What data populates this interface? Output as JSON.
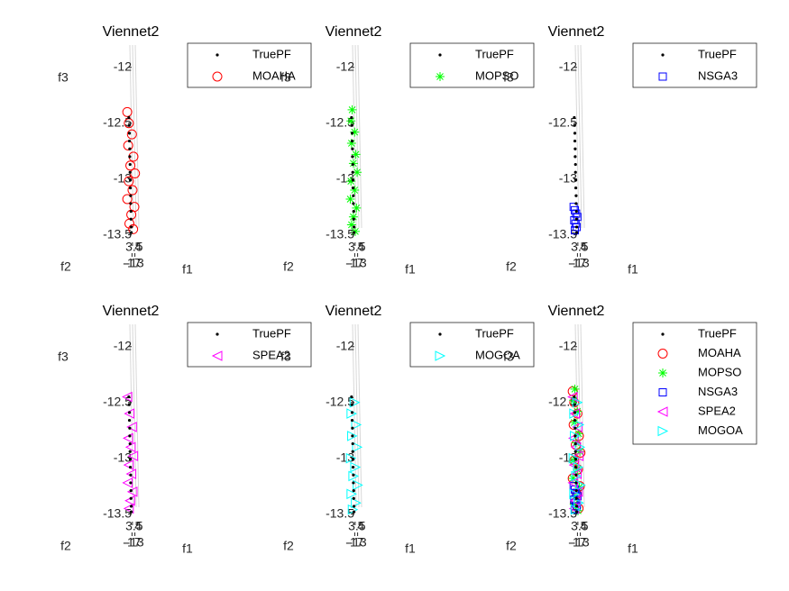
{
  "chart_data": [
    {
      "type": "scatter3d",
      "title": "Viennet2",
      "xlabel": "f1",
      "ylabel": "f2",
      "zlabel": "f3",
      "xlim": [
        3.4,
        4.1
      ],
      "xticks": [
        3.5,
        4
      ],
      "ylim": [
        -17.5,
        -12.5
      ],
      "yticks": [
        -17,
        -13
      ],
      "zlim": [
        -13.6,
        -11.8
      ],
      "zticks": [
        -12,
        -12.5,
        -13,
        -13.5
      ],
      "legend": "northeastoutside",
      "series": [
        {
          "name": "TruePF",
          "color": "#000000",
          "marker": "point",
          "x": [
            3.6,
            3.61,
            3.62,
            3.62,
            3.63,
            3.63,
            3.64,
            3.64,
            3.65,
            3.65,
            3.66,
            3.66,
            3.67,
            3.67,
            3.68,
            3.68
          ],
          "values": [
            -12.45,
            -12.52,
            -12.59,
            -12.66,
            -12.73,
            -12.8,
            -12.87,
            -12.94,
            -13.01,
            -13.08,
            -13.15,
            -13.22,
            -13.29,
            -13.36,
            -13.43,
            -13.48
          ]
        },
        {
          "name": "MOAHA",
          "color": "#ff0000",
          "marker": "circle",
          "x": [
            3.55,
            3.6,
            3.7,
            3.58,
            3.75,
            3.65,
            3.8,
            3.6,
            3.72,
            3.55,
            3.78,
            3.68,
            3.62,
            3.74
          ],
          "values": [
            -12.4,
            -12.5,
            -12.6,
            -12.7,
            -12.8,
            -12.88,
            -12.95,
            -13.02,
            -13.1,
            -13.18,
            -13.25,
            -13.32,
            -13.4,
            -13.45
          ]
        }
      ]
    },
    {
      "type": "scatter3d",
      "title": "Viennet2",
      "xlabel": "f1",
      "ylabel": "f2",
      "zlabel": "f3",
      "xlim": [
        3.4,
        4.1
      ],
      "xticks": [
        3.5,
        4
      ],
      "ylim": [
        -17.5,
        -12.5
      ],
      "yticks": [
        -17,
        -13
      ],
      "zlim": [
        -13.6,
        -11.8
      ],
      "zticks": [
        -12,
        -12.5,
        -13,
        -13.5
      ],
      "legend": "northeastoutside",
      "series": [
        {
          "name": "TruePF",
          "color": "#000000",
          "marker": "point",
          "x": [
            3.6,
            3.61,
            3.62,
            3.62,
            3.63,
            3.63,
            3.64,
            3.64,
            3.65,
            3.65,
            3.66,
            3.66,
            3.67,
            3.67,
            3.68,
            3.68
          ],
          "values": [
            -12.45,
            -12.52,
            -12.59,
            -12.66,
            -12.73,
            -12.8,
            -12.87,
            -12.94,
            -13.01,
            -13.08,
            -13.15,
            -13.22,
            -13.29,
            -13.36,
            -13.43,
            -13.48
          ]
        },
        {
          "name": "MOPSO",
          "color": "#00ff00",
          "marker": "asterisk",
          "x": [
            3.62,
            3.58,
            3.7,
            3.6,
            3.74,
            3.66,
            3.78,
            3.58,
            3.7,
            3.56,
            3.76,
            3.66,
            3.6,
            3.72
          ],
          "values": [
            -12.38,
            -12.48,
            -12.58,
            -12.68,
            -12.78,
            -12.86,
            -12.94,
            -13.02,
            -13.1,
            -13.18,
            -13.26,
            -13.34,
            -13.41,
            -13.47
          ]
        }
      ]
    },
    {
      "type": "scatter3d",
      "title": "Viennet2",
      "xlabel": "f1",
      "ylabel": "f2",
      "zlabel": "f3",
      "xlim": [
        3.4,
        4.1
      ],
      "xticks": [
        3.5,
        4
      ],
      "ylim": [
        -17.5,
        -12.5
      ],
      "yticks": [
        -17,
        -13
      ],
      "zlim": [
        -13.6,
        -11.8
      ],
      "zticks": [
        -12,
        -12.5,
        -13,
        -13.5
      ],
      "legend": "northeastoutside",
      "series": [
        {
          "name": "TruePF",
          "color": "#000000",
          "marker": "point",
          "x": [
            3.6,
            3.61,
            3.62,
            3.62,
            3.63,
            3.63,
            3.64,
            3.64,
            3.65,
            3.65,
            3.66,
            3.66,
            3.67,
            3.67,
            3.68,
            3.68
          ],
          "values": [
            -12.45,
            -12.52,
            -12.59,
            -12.66,
            -12.73,
            -12.8,
            -12.87,
            -12.94,
            -13.01,
            -13.08,
            -13.15,
            -13.22,
            -13.29,
            -13.36,
            -13.43,
            -13.48
          ]
        },
        {
          "name": "NSGA3",
          "color": "#0000ff",
          "marker": "square",
          "x": [
            3.58,
            3.62,
            3.66,
            3.7,
            3.6,
            3.64,
            3.68,
            3.62
          ],
          "values": [
            -13.25,
            -13.28,
            -13.31,
            -13.34,
            -13.37,
            -13.4,
            -13.43,
            -13.46
          ]
        }
      ]
    },
    {
      "type": "scatter3d",
      "title": "Viennet2",
      "xlabel": "f1",
      "ylabel": "f2",
      "zlabel": "f3",
      "xlim": [
        3.4,
        4.1
      ],
      "xticks": [
        3.5,
        4
      ],
      "ylim": [
        -17.5,
        -12.5
      ],
      "yticks": [
        -17,
        -13
      ],
      "zlim": [
        -13.6,
        -11.8
      ],
      "zticks": [
        -12,
        -12.5,
        -13,
        -13.5
      ],
      "legend": "northeastoutside",
      "series": [
        {
          "name": "TruePF",
          "color": "#000000",
          "marker": "point",
          "x": [
            3.6,
            3.61,
            3.62,
            3.62,
            3.63,
            3.63,
            3.64,
            3.64,
            3.65,
            3.65,
            3.66,
            3.66,
            3.67,
            3.67,
            3.68,
            3.68
          ],
          "values": [
            -12.45,
            -12.52,
            -12.59,
            -12.66,
            -12.73,
            -12.8,
            -12.87,
            -12.94,
            -13.01,
            -13.08,
            -13.15,
            -13.22,
            -13.29,
            -13.36,
            -13.43,
            -13.48
          ]
        },
        {
          "name": "SPEA2",
          "color": "#ff00ff",
          "marker": "triangle-left",
          "x": [
            3.55,
            3.62,
            3.7,
            3.58,
            3.66,
            3.74,
            3.6,
            3.68,
            3.56,
            3.72,
            3.64,
            3.6
          ],
          "values": [
            -12.45,
            -12.6,
            -12.72,
            -12.82,
            -12.9,
            -12.98,
            -13.06,
            -13.14,
            -13.22,
            -13.3,
            -13.38,
            -13.45
          ]
        }
      ]
    },
    {
      "type": "scatter3d",
      "title": "Viennet2",
      "xlabel": "f1",
      "ylabel": "f2",
      "zlabel": "f3",
      "xlim": [
        3.4,
        4.1
      ],
      "xticks": [
        3.5,
        4
      ],
      "ylim": [
        -17.5,
        -12.5
      ],
      "yticks": [
        -17,
        -13
      ],
      "zlim": [
        -13.6,
        -11.8
      ],
      "zticks": [
        -12,
        -12.5,
        -13,
        -13.5
      ],
      "legend": "northeastoutside",
      "series": [
        {
          "name": "TruePF",
          "color": "#000000",
          "marker": "point",
          "x": [
            3.6,
            3.61,
            3.62,
            3.62,
            3.63,
            3.63,
            3.64,
            3.64,
            3.65,
            3.65,
            3.66,
            3.66,
            3.67,
            3.67,
            3.68,
            3.68
          ],
          "values": [
            -12.45,
            -12.52,
            -12.59,
            -12.66,
            -12.73,
            -12.8,
            -12.87,
            -12.94,
            -13.01,
            -13.08,
            -13.15,
            -13.22,
            -13.29,
            -13.36,
            -13.43,
            -13.48
          ]
        },
        {
          "name": "MOGOA",
          "color": "#00ffff",
          "marker": "triangle-right",
          "x": [
            3.7,
            3.6,
            3.75,
            3.62,
            3.78,
            3.58,
            3.72,
            3.66,
            3.8,
            3.6,
            3.74,
            3.64
          ],
          "values": [
            -12.5,
            -12.6,
            -12.7,
            -12.8,
            -12.9,
            -13,
            -13.08,
            -13.16,
            -13.24,
            -13.32,
            -13.4,
            -13.46
          ]
        }
      ]
    },
    {
      "type": "scatter3d",
      "title": "Viennet2",
      "xlabel": "f1",
      "ylabel": "f2",
      "zlabel": "f3",
      "xlim": [
        3.4,
        4.1
      ],
      "xticks": [
        3.5,
        4
      ],
      "ylim": [
        -17.5,
        -12.5
      ],
      "yticks": [
        -17,
        -13
      ],
      "zlim": [
        -13.6,
        -11.8
      ],
      "zticks": [
        -12,
        -12.5,
        -13,
        -13.5
      ],
      "legend": "northeastoutside",
      "series": [
        {
          "name": "TruePF",
          "color": "#000000",
          "marker": "point",
          "x": [
            3.6,
            3.61,
            3.62,
            3.62,
            3.63,
            3.63,
            3.64,
            3.64,
            3.65,
            3.65,
            3.66,
            3.66,
            3.67,
            3.67,
            3.68,
            3.68
          ],
          "values": [
            -12.45,
            -12.52,
            -12.59,
            -12.66,
            -12.73,
            -12.8,
            -12.87,
            -12.94,
            -13.01,
            -13.08,
            -13.15,
            -13.22,
            -13.29,
            -13.36,
            -13.43,
            -13.48
          ]
        },
        {
          "name": "MOAHA",
          "color": "#ff0000",
          "marker": "circle",
          "x": [
            3.55,
            3.6,
            3.7,
            3.58,
            3.75,
            3.65,
            3.8,
            3.6,
            3.72,
            3.55,
            3.78,
            3.68,
            3.62,
            3.74
          ],
          "values": [
            -12.4,
            -12.5,
            -12.6,
            -12.7,
            -12.8,
            -12.88,
            -12.95,
            -13.02,
            -13.1,
            -13.18,
            -13.25,
            -13.32,
            -13.4,
            -13.45
          ]
        },
        {
          "name": "MOPSO",
          "color": "#00ff00",
          "marker": "asterisk",
          "x": [
            3.62,
            3.58,
            3.7,
            3.6,
            3.74,
            3.66,
            3.78,
            3.58,
            3.7,
            3.56,
            3.76,
            3.66,
            3.6,
            3.72
          ],
          "values": [
            -12.38,
            -12.48,
            -12.58,
            -12.68,
            -12.78,
            -12.86,
            -12.94,
            -13.02,
            -13.1,
            -13.18,
            -13.26,
            -13.34,
            -13.41,
            -13.47
          ]
        },
        {
          "name": "NSGA3",
          "color": "#0000ff",
          "marker": "square",
          "x": [
            3.58,
            3.62,
            3.66,
            3.7,
            3.6,
            3.64,
            3.68,
            3.62
          ],
          "values": [
            -13.25,
            -13.28,
            -13.31,
            -13.34,
            -13.37,
            -13.4,
            -13.43,
            -13.46
          ]
        },
        {
          "name": "SPEA2",
          "color": "#ff00ff",
          "marker": "triangle-left",
          "x": [
            3.55,
            3.62,
            3.7,
            3.58,
            3.66,
            3.74,
            3.6,
            3.68,
            3.56,
            3.72,
            3.64,
            3.6
          ],
          "values": [
            -12.45,
            -12.6,
            -12.72,
            -12.82,
            -12.9,
            -12.98,
            -13.06,
            -13.14,
            -13.22,
            -13.3,
            -13.38,
            -13.45
          ]
        },
        {
          "name": "MOGOA",
          "color": "#00ffff",
          "marker": "triangle-right",
          "x": [
            3.7,
            3.6,
            3.75,
            3.62,
            3.78,
            3.58,
            3.72,
            3.66,
            3.8,
            3.6,
            3.74,
            3.64
          ],
          "values": [
            -12.5,
            -12.6,
            -12.7,
            -12.8,
            -12.9,
            -13,
            -13.08,
            -13.16,
            -13.24,
            -13.32,
            -13.4,
            -13.46
          ]
        }
      ]
    }
  ]
}
